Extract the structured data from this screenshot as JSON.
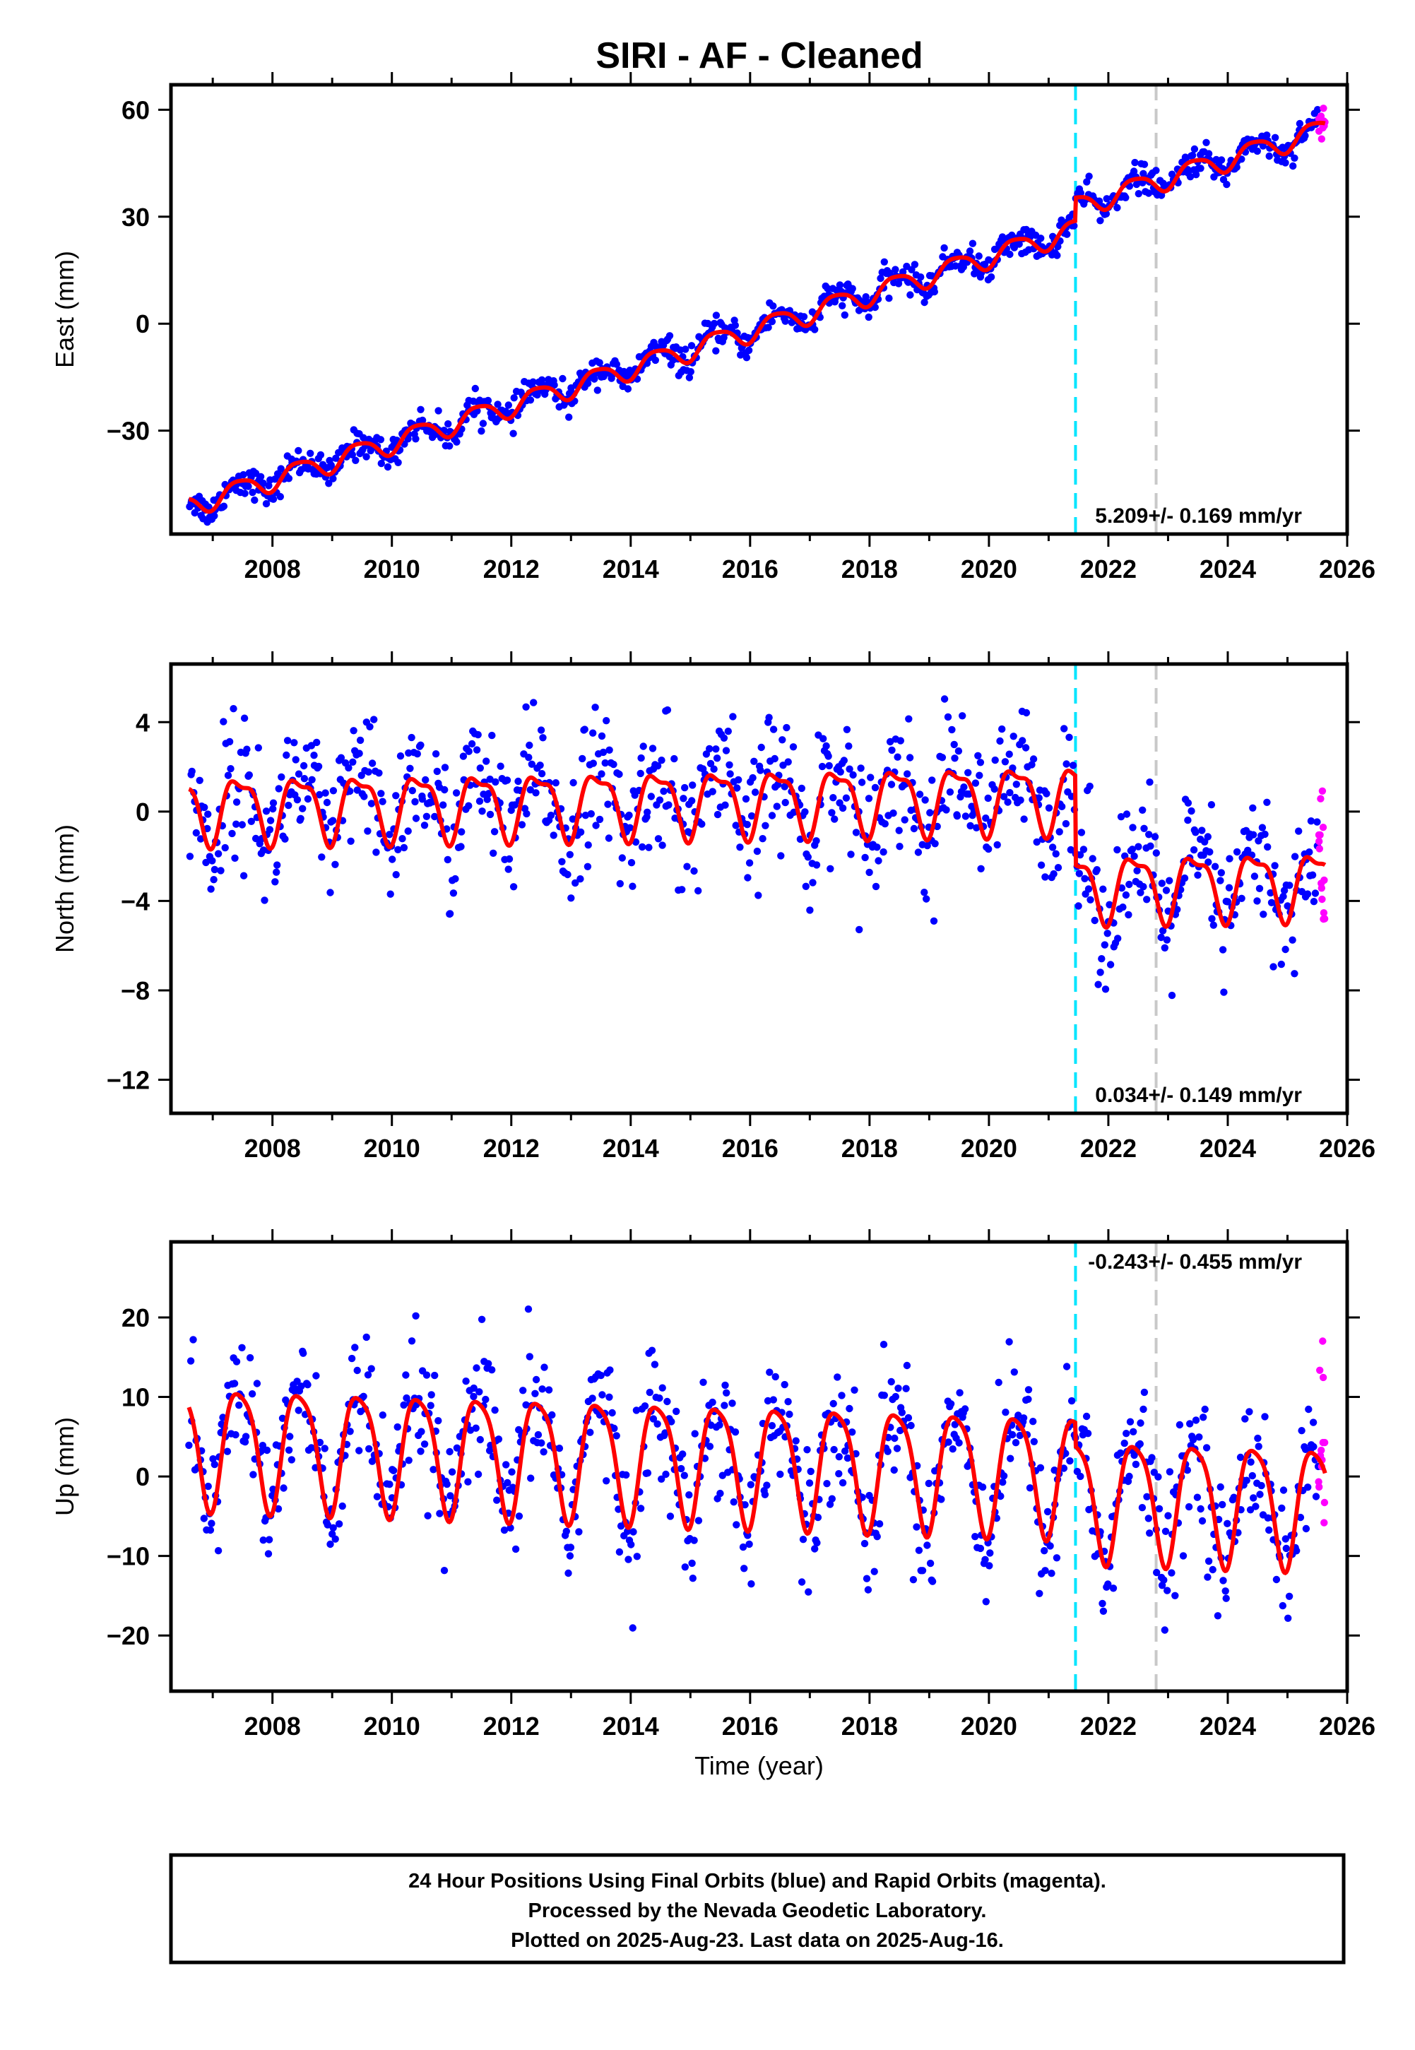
{
  "title": "SIRI  - AF - Cleaned",
  "footer": {
    "line1": "24 Hour Positions Using Final Orbits (blue) and Rapid Orbits (magenta).",
    "line2": "Processed by the Nevada Geodetic Laboratory.",
    "line3": "Plotted on 2025-Aug-23. Last data on 2025-Aug-16."
  },
  "colors": {
    "final": "#0000ff",
    "rapid": "#ff00ff",
    "model": "#ff0000",
    "offset_equipment": "#00e5ff",
    "offset_other": "#c8c8c8"
  },
  "chart_data": [
    {
      "type": "scatter",
      "ylabel": "East (mm)",
      "xlabel": "",
      "xlim": [
        2006.3,
        2026.0
      ],
      "ylim": [
        -59,
        67
      ],
      "x_ticks": [
        2008,
        2010,
        2012,
        2014,
        2016,
        2018,
        2020,
        2022,
        2024,
        2026
      ],
      "y_ticks": [
        -30,
        0,
        30,
        60
      ],
      "velocity_label": "5.209+/- 0.169 mm/yr",
      "velocity_position": "bottom-right",
      "offset_lines": [
        2021.45,
        2022.8
      ],
      "model": {
        "rate": 5.209,
        "ref_year": 2016,
        "offset_at_ref": -2.0,
        "annual_amp": 3.0,
        "semiannual_amp": 0.6,
        "steps": [
          {
            "year": 2021.45,
            "value": 6.5
          }
        ]
      },
      "series": [
        {
          "name": "Final Orbits (blue)",
          "x_start": 2006.6,
          "x_end": 2025.52,
          "points": 900,
          "scatter_sd": 2.0
        },
        {
          "name": "Rapid Orbits (magenta)",
          "x_start": 2025.52,
          "x_end": 2025.63,
          "points": 14,
          "scatter_sd": 2.5
        }
      ]
    },
    {
      "type": "scatter",
      "ylabel": "North (mm)",
      "xlabel": "",
      "xlim": [
        2006.3,
        2026.0
      ],
      "ylim": [
        -13.5,
        6.6
      ],
      "x_ticks": [
        2008,
        2010,
        2012,
        2014,
        2016,
        2018,
        2020,
        2022,
        2024,
        2026
      ],
      "y_ticks": [
        -12,
        -8,
        -4,
        0,
        4
      ],
      "velocity_label": "0.034+/- 0.149 mm/yr",
      "velocity_position": "bottom-right",
      "offset_lines": [
        2021.45,
        2022.8
      ],
      "model": {
        "rate": 0.034,
        "ref_year": 2016,
        "offset_at_ref": 0.5,
        "annual_amp": 1.4,
        "semiannual_amp": 0.5,
        "steps": [
          {
            "year": 2021.45,
            "value": -4.0
          }
        ]
      },
      "series": [
        {
          "name": "Final Orbits (blue)",
          "x_start": 2006.6,
          "x_end": 2025.52,
          "points": 900,
          "scatter_sd": 1.5
        },
        {
          "name": "Rapid Orbits (magenta)",
          "x_start": 2025.52,
          "x_end": 2025.63,
          "points": 14,
          "scatter_sd": 2.0
        }
      ]
    },
    {
      "type": "scatter",
      "ylabel": "Up (mm)",
      "xlabel": "Time (year)",
      "xlim": [
        2006.3,
        2026.0
      ],
      "ylim": [
        -27,
        29.5
      ],
      "x_ticks": [
        2008,
        2010,
        2012,
        2014,
        2016,
        2018,
        2020,
        2022,
        2024,
        2026
      ],
      "y_ticks": [
        -20,
        -10,
        0,
        10,
        20
      ],
      "velocity_label": "-0.243+/- 0.455 mm/yr",
      "velocity_position": "top-right",
      "offset_lines": [
        2021.45,
        2022.8
      ],
      "model": {
        "rate": -0.243,
        "ref_year": 2016,
        "offset_at_ref": 2.0,
        "annual_amp": 7.5,
        "semiannual_amp": 1.5,
        "steps": [
          {
            "year": 2021.45,
            "value": -3.0
          }
        ]
      },
      "series": [
        {
          "name": "Final Orbits (blue)",
          "x_start": 2006.6,
          "x_end": 2025.52,
          "points": 900,
          "scatter_sd": 4.2
        },
        {
          "name": "Rapid Orbits (magenta)",
          "x_start": 2025.52,
          "x_end": 2025.63,
          "points": 14,
          "scatter_sd": 6.0
        }
      ]
    }
  ]
}
